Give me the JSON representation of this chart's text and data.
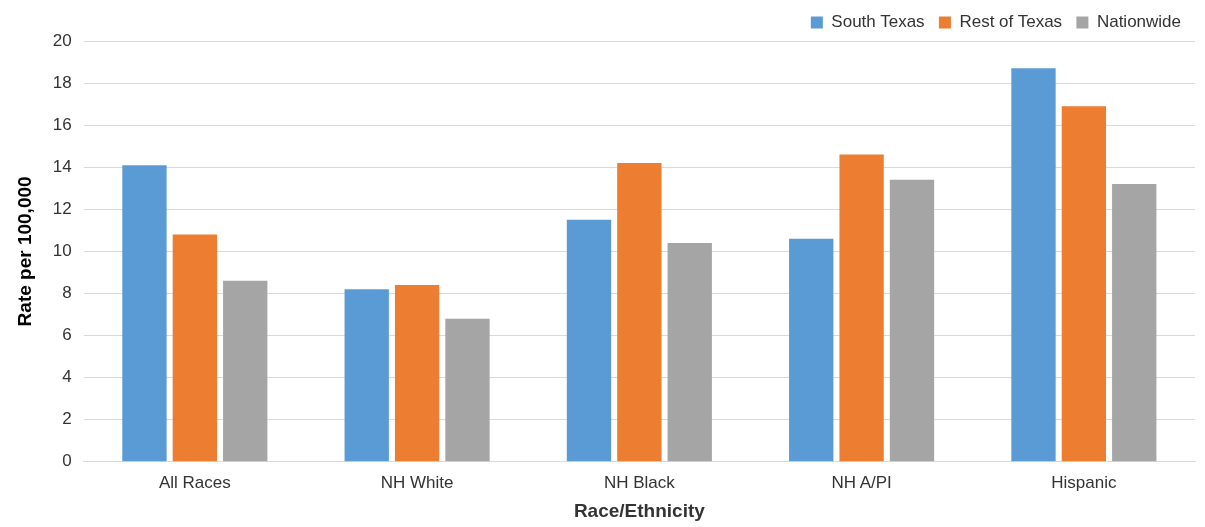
{
  "chart_data": {
    "type": "bar",
    "xlabel": "Race/Ethnicity",
    "ylabel": "Rate per 100,000",
    "categories": [
      "All Races",
      "NH White",
      "NH Black",
      "NH A/PI",
      "Hispanic"
    ],
    "series": [
      {
        "name": "South Texas",
        "color": "#5b9bd5",
        "values": [
          14.1,
          8.2,
          11.5,
          10.6,
          18.7
        ]
      },
      {
        "name": "Rest of Texas",
        "color": "#ed7d31",
        "values": [
          10.8,
          8.4,
          14.2,
          14.6,
          16.9
        ]
      },
      {
        "name": "Nationwide",
        "color": "#a5a5a5",
        "values": [
          8.6,
          6.8,
          10.4,
          13.4,
          13.2
        ]
      }
    ],
    "ylim": [
      0,
      20
    ],
    "yticks": [
      0,
      2,
      4,
      6,
      8,
      10,
      12,
      14,
      16,
      18,
      20
    ],
    "grid": "y",
    "legend": "top right"
  }
}
